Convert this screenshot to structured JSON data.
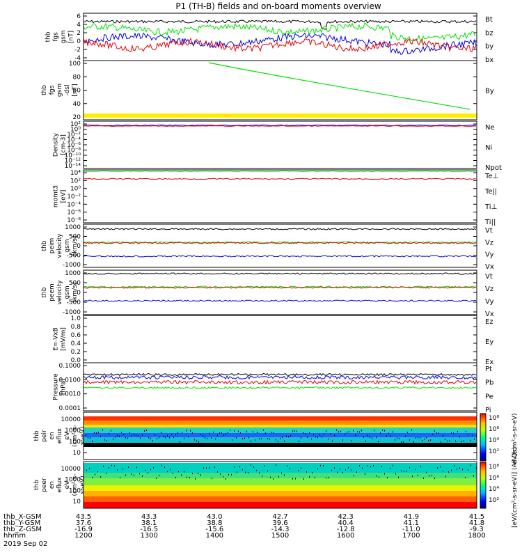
{
  "title": "P1 (TH-B) fields and on-board moments overview",
  "colors": {
    "black": "#000000",
    "red": "#e00000",
    "green": "#00e000",
    "blue": "#0000e0",
    "yellow": "#ffee00"
  },
  "panels": [
    {
      "id": "fgs",
      "ylabel": [
        "thb",
        "fgs",
        "gsm",
        "[nT]"
      ],
      "ticks": [
        "6",
        "4",
        "2",
        "0",
        "-2",
        "-4"
      ],
      "legend": [
        {
          "t": "Bt",
          "c": "black"
        },
        {
          "t": "bz",
          "c": "red"
        },
        {
          "t": "by",
          "c": "green"
        },
        {
          "t": "bx",
          "c": "blue"
        }
      ]
    },
    {
      "id": "fgs_dsl",
      "ylabel": [
        "thb",
        "fgs",
        "gsm",
        "-dsl",
        "[nT]"
      ],
      "ticks": [
        "100",
        "80",
        "60",
        "40",
        "20"
      ],
      "legend": [
        {
          "t": "By",
          "c": "green"
        }
      ]
    },
    {
      "id": "density",
      "ylabel": [
        "Density",
        "[cm-3]"
      ],
      "ticks": [
        "10²",
        "10⁰",
        "10⁻²",
        "10⁻⁴",
        "10⁻⁶",
        "10⁻⁸",
        "10⁻¹⁰",
        "10⁻¹²",
        "10⁻¹⁴"
      ],
      "legend": [
        {
          "t": "Ne",
          "c": "red"
        },
        {
          "t": "Ni",
          "c": "black"
        },
        {
          "t": "Npot",
          "c": "blue"
        }
      ]
    },
    {
      "id": "temp",
      "ylabel": [
        "momt3",
        "[eV]"
      ],
      "ticks": [
        "10⁴",
        "10²",
        "10⁰",
        "10⁻²",
        "10⁻⁴",
        "10⁻⁶",
        "10⁻⁸"
      ],
      "legend": [
        {
          "t": "Te⊥",
          "c": "red"
        },
        {
          "t": "Te||",
          "c": "black"
        },
        {
          "t": "Ti⊥",
          "c": "blue"
        },
        {
          "t": "Ti||",
          "c": "green"
        }
      ]
    },
    {
      "id": "peim",
      "ylabel": [
        "thb",
        "peim",
        "velocity",
        "gsm",
        "[km/s]"
      ],
      "ticks": [
        "1000",
        "500",
        "0",
        "-500",
        "-1000"
      ],
      "legend": [
        {
          "t": "Vt",
          "c": "black"
        },
        {
          "t": "Vz",
          "c": "red"
        },
        {
          "t": "Vy",
          "c": "green"
        },
        {
          "t": "Vx",
          "c": "blue"
        }
      ]
    },
    {
      "id": "peem",
      "ylabel": [
        "thb",
        "peem",
        "velocity",
        "gsm",
        "[km/s]"
      ],
      "ticks": [
        "1000",
        "500",
        "0",
        "-500",
        "-1000"
      ],
      "legend": [
        {
          "t": "Vt",
          "c": "black"
        },
        {
          "t": "Vz",
          "c": "red"
        },
        {
          "t": "Vy",
          "c": "green"
        },
        {
          "t": "Vx",
          "c": "blue"
        }
      ]
    },
    {
      "id": "efield",
      "ylabel": [
        "E=-VxB",
        "[mV/m]"
      ],
      "ticks": [
        "1.0",
        "0.8",
        "0.6",
        "0.4",
        "0.2",
        "0.0"
      ],
      "legend": [
        {
          "t": "Ez",
          "c": "red"
        },
        {
          "t": "Ey",
          "c": "green"
        },
        {
          "t": "Ex",
          "c": "blue"
        }
      ]
    },
    {
      "id": "pressure",
      "ylabel": [
        "Pressure",
        "[nPa]"
      ],
      "ticks": [
        "0.1000",
        "0.0100",
        "0.0010",
        "0.0001"
      ],
      "legend": [
        {
          "t": "Pt",
          "c": "black"
        },
        {
          "t": "Pb",
          "c": "red"
        },
        {
          "t": "Pe",
          "c": "green"
        },
        {
          "t": "Pi",
          "c": "blue"
        }
      ]
    },
    {
      "id": "peir",
      "ylabel": [
        "thb",
        "peir",
        "en",
        "eflux",
        "eV",
        "(cm²-s-",
        "sr-eV)"
      ],
      "ticks": [
        "10000",
        "1000",
        "100",
        "10"
      ],
      "legend": []
    },
    {
      "id": "peer",
      "ylabel": [
        "thb",
        "peer",
        "en",
        "eflux",
        "eV",
        "(cm²-s-",
        "sr-eV)"
      ],
      "ticks": [
        "10000",
        "1000",
        "100",
        "10"
      ],
      "legend": []
    }
  ],
  "colorbar": {
    "ticks": [
      "10⁸",
      "10⁶",
      "10⁴",
      "10²",
      "10⁸",
      "10⁶",
      "10⁴",
      "10²"
    ],
    "label": "[eV/(cm²-s-sr-eV)]  (All Qs)",
    "label2": "eV/(cm²-s-sr-eV)"
  },
  "xaxis": {
    "rows": [
      {
        "label": "thb_X-GSM",
        "values": [
          "43.5",
          "43.3",
          "43.0",
          "42.7",
          "42.3",
          "41.9",
          "41.5"
        ]
      },
      {
        "label": "thb_Y-GSM",
        "values": [
          "37.6",
          "38.1",
          "38.8",
          "39.6",
          "40.4",
          "41.1",
          "41.8"
        ]
      },
      {
        "label": "thb_Z-GSM",
        "values": [
          "-16.9",
          "-16.5",
          "-15.6",
          "-14.3",
          "-12.8",
          "-11.0",
          "-9.3"
        ]
      },
      {
        "label": "hhmm",
        "values": [
          "1200",
          "1300",
          "1400",
          "1500",
          "1600",
          "1700",
          "1800"
        ]
      }
    ],
    "date": "2019 Sep 02"
  }
}
